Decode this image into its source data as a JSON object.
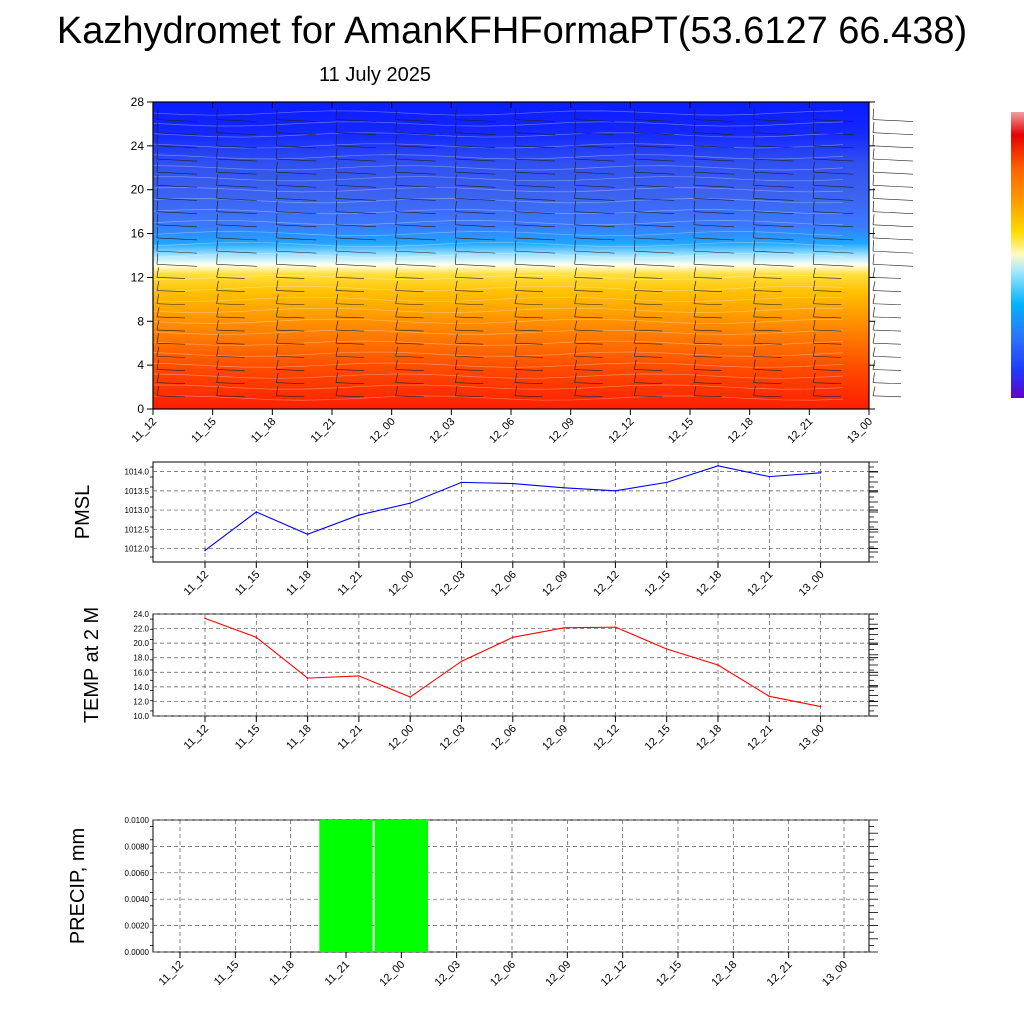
{
  "title": "Kazhydromet for AmanKFHFormaPT(53.6127 66.438)",
  "subtitle": "11 July 2025",
  "time_labels": [
    "11_12",
    "11_15",
    "11_18",
    "11_21",
    "12_00",
    "12_03",
    "12_06",
    "12_09",
    "12_12",
    "12_15",
    "12_18",
    "12_21",
    "13_00"
  ],
  "colors": {
    "pmsl_line": "#0000ff",
    "temp_line": "#ff0000",
    "precip_bar": "#00ff00"
  },
  "chart_data": [
    {
      "type": "heatmap",
      "x": [
        "11_12",
        "11_15",
        "11_18",
        "11_21",
        "12_00",
        "12_03",
        "12_06",
        "12_09",
        "12_12",
        "12_15",
        "12_18",
        "12_21",
        "13_00"
      ],
      "y_ticks": [
        0,
        4,
        8,
        12,
        16,
        20,
        24,
        28
      ],
      "ylim": [
        0,
        28
      ],
      "colorbar_colors": [
        "#6000c8",
        "#1e3cff",
        "#2a78ff",
        "#00b4ff",
        "#a0e6ff",
        "#fffac8",
        "#ffdc00",
        "#ffa000",
        "#ff6400",
        "#e60000",
        "#f0a0a0"
      ],
      "overlay": "wind barbs",
      "grid": false
    },
    {
      "type": "line",
      "ylabel": "PMSL",
      "x": [
        "11_12",
        "11_15",
        "11_18",
        "11_21",
        "12_00",
        "12_03",
        "12_06",
        "12_09",
        "12_12",
        "12_15",
        "12_18",
        "12_21",
        "13_00"
      ],
      "y_ticks": [
        "1012.0",
        "1012.5",
        "1013.0",
        "1013.5",
        "1014.0"
      ],
      "ylim": [
        1011.65,
        1014.25
      ],
      "series": [
        {
          "values": [
            1011.95,
            1012.95,
            1012.37,
            1012.87,
            1013.18,
            1013.72,
            1013.69,
            1013.58,
            1013.5,
            1013.72,
            1014.15,
            1013.87,
            1013.97
          ]
        }
      ],
      "grid": true
    },
    {
      "type": "line",
      "ylabel": "TEMP at 2 M",
      "x": [
        "11_12",
        "11_15",
        "11_18",
        "11_21",
        "12_00",
        "12_03",
        "12_06",
        "12_09",
        "12_12",
        "12_15",
        "12_18",
        "12_21",
        "13_00"
      ],
      "y_ticks": [
        "10.0",
        "12.0",
        "14.0",
        "16.0",
        "18.0",
        "20.0",
        "22.0",
        "24.0"
      ],
      "ylim": [
        10,
        24
      ],
      "series": [
        {
          "values": [
            23.4,
            20.8,
            15.2,
            15.5,
            12.6,
            17.5,
            20.8,
            22.1,
            22.2,
            19.2,
            17.0,
            12.7,
            11.3
          ]
        }
      ],
      "grid": true
    },
    {
      "type": "bar",
      "ylabel": "PRECIP, mm",
      "x": [
        "11_12",
        "11_15",
        "11_18",
        "11_21",
        "12_00",
        "12_03",
        "12_06",
        "12_09",
        "12_12",
        "12_15",
        "12_18",
        "12_21",
        "13_00"
      ],
      "y_ticks": [
        "0.0000",
        "0.0020",
        "0.0040",
        "0.0060",
        "0.0080",
        "0.0100"
      ],
      "ylim": [
        0,
        0.01
      ],
      "values": [
        0,
        0,
        0,
        0.01,
        0.01,
        0,
        0,
        0,
        0,
        0,
        0,
        0,
        0
      ],
      "grid": true
    }
  ]
}
